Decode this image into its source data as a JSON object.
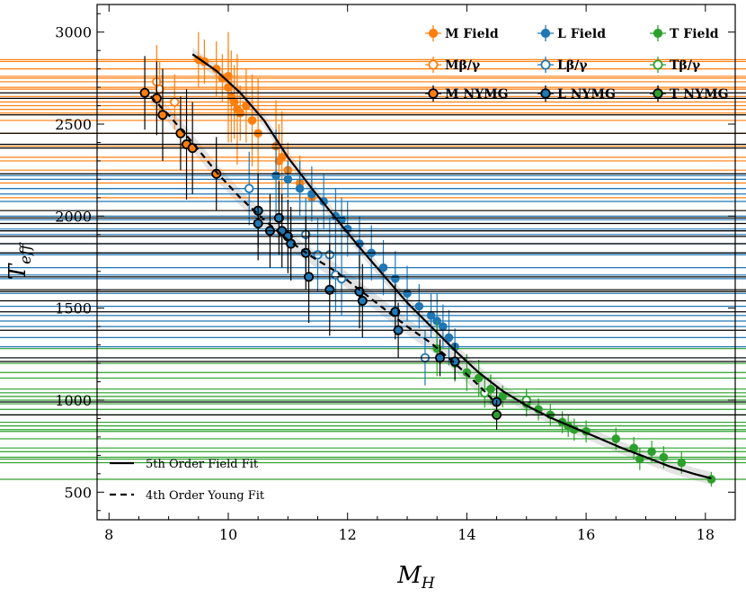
{
  "chart_data": {
    "type": "scatter",
    "title": "",
    "xlabel_main": "M",
    "xlabel_sub": "H",
    "ylabel_main": "T",
    "ylabel_sub": "eff",
    "xlim": [
      7.8,
      18.5
    ],
    "ylim": [
      350,
      3150
    ],
    "xticks": [
      8,
      10,
      12,
      14,
      16,
      18
    ],
    "yticks": [
      500,
      1000,
      1500,
      2000,
      2500,
      3000
    ],
    "grid": false,
    "legend_position": "top-right",
    "fit_legend_position": "bottom-left",
    "colors": {
      "M": "#ff7f0e",
      "L": "#1f77b4",
      "T": "#2ca02c",
      "edge": "#000000",
      "fit": "#000000",
      "band": "#d9d9d9"
    },
    "legend": [
      {
        "label": "M Field",
        "group": "M",
        "style": "filled"
      },
      {
        "label": "L Field",
        "group": "L",
        "style": "filled"
      },
      {
        "label": "T Field",
        "group": "T",
        "style": "filled"
      },
      {
        "label": "Mβ/γ",
        "group": "M",
        "style": "open"
      },
      {
        "label": "Lβ/γ",
        "group": "L",
        "style": "open"
      },
      {
        "label": "Tβ/γ",
        "group": "T",
        "style": "open"
      },
      {
        "label": "M NYMG",
        "group": "M",
        "style": "nymg"
      },
      {
        "label": "L NYMG",
        "group": "L",
        "style": "nymg"
      },
      {
        "label": "T NYMG",
        "group": "T",
        "style": "nymg"
      }
    ],
    "fit_legend": [
      {
        "label": "5th Order Field Fit",
        "dash": "solid"
      },
      {
        "label": "4th Order Young Fit",
        "dash": "dashed"
      }
    ],
    "field_fit": [
      [
        9.4,
        2880
      ],
      [
        9.8,
        2790
      ],
      [
        10.2,
        2670
      ],
      [
        10.6,
        2520
      ],
      [
        11.0,
        2320
      ],
      [
        11.4,
        2150
      ],
      [
        11.8,
        1990
      ],
      [
        12.2,
        1830
      ],
      [
        12.6,
        1680
      ],
      [
        13.0,
        1530
      ],
      [
        13.4,
        1400
      ],
      [
        13.8,
        1270
      ],
      [
        14.2,
        1150
      ],
      [
        14.6,
        1050
      ],
      [
        15.0,
        970
      ],
      [
        15.4,
        905
      ],
      [
        15.8,
        850
      ],
      [
        16.2,
        795
      ],
      [
        16.6,
        740
      ],
      [
        17.0,
        690
      ],
      [
        17.4,
        640
      ],
      [
        17.8,
        600
      ],
      [
        18.1,
        575
      ]
    ],
    "young_fit": [
      [
        8.7,
        2650
      ],
      [
        9.0,
        2550
      ],
      [
        9.4,
        2400
      ],
      [
        9.8,
        2240
      ],
      [
        10.2,
        2100
      ],
      [
        10.6,
        1980
      ],
      [
        11.0,
        1870
      ],
      [
        11.4,
        1780
      ],
      [
        11.8,
        1700
      ],
      [
        12.2,
        1600
      ],
      [
        12.6,
        1500
      ],
      [
        13.0,
        1400
      ],
      [
        13.4,
        1310
      ],
      [
        13.8,
        1200
      ],
      [
        14.2,
        1080
      ],
      [
        14.5,
        980
      ]
    ],
    "series": [
      {
        "name": "M Field",
        "group": "M",
        "style": "filled",
        "points": [
          [
            9.5,
            2850,
            40,
            150
          ],
          [
            9.6,
            2840,
            60,
            120
          ],
          [
            9.8,
            2800,
            70,
            150
          ],
          [
            9.9,
            2750,
            100,
            130
          ],
          [
            10.0,
            2700,
            60,
            300
          ],
          [
            10.0,
            2760,
            80,
            150
          ],
          [
            10.05,
            2650,
            70,
            250
          ],
          [
            10.1,
            2620,
            200,
            200
          ],
          [
            10.15,
            2580,
            70,
            300
          ],
          [
            10.2,
            2560,
            40,
            150
          ],
          [
            10.3,
            2600,
            60,
            200
          ],
          [
            10.4,
            2520,
            50,
            250
          ],
          [
            10.5,
            2450,
            60,
            300
          ],
          [
            10.8,
            2380,
            90,
            250
          ],
          [
            10.85,
            2300,
            40,
            200
          ],
          [
            10.9,
            2320,
            60,
            250
          ],
          [
            11.0,
            2250,
            60,
            150
          ],
          [
            11.2,
            2180,
            50,
            150
          ],
          [
            11.4,
            2100,
            40,
            100
          ]
        ]
      },
      {
        "name": "L Field",
        "group": "L",
        "style": "filled",
        "points": [
          [
            10.8,
            2220,
            50,
            250
          ],
          [
            11.0,
            2200,
            60,
            100
          ],
          [
            11.2,
            2150,
            60,
            150
          ],
          [
            11.4,
            2120,
            70,
            150
          ],
          [
            11.6,
            2080,
            60,
            150
          ],
          [
            11.8,
            2000,
            40,
            150
          ],
          [
            11.9,
            1980,
            60,
            120
          ],
          [
            12.0,
            1930,
            40,
            150
          ],
          [
            12.2,
            1850,
            70,
            150
          ],
          [
            12.4,
            1800,
            60,
            150
          ],
          [
            12.6,
            1720,
            70,
            150
          ],
          [
            12.8,
            1660,
            70,
            150
          ],
          [
            13.0,
            1580,
            60,
            150
          ],
          [
            13.2,
            1510,
            70,
            120
          ],
          [
            13.4,
            1460,
            70,
            120
          ],
          [
            13.5,
            1430,
            70,
            150
          ],
          [
            13.6,
            1400,
            60,
            120
          ],
          [
            13.7,
            1340,
            70,
            150
          ],
          [
            13.8,
            1290,
            60,
            100
          ]
        ]
      },
      {
        "name": "T Field",
        "group": "T",
        "style": "filled",
        "points": [
          [
            13.5,
            1280,
            60,
            150
          ],
          [
            13.8,
            1200,
            60,
            100
          ],
          [
            14.0,
            1150,
            70,
            100
          ],
          [
            14.2,
            1120,
            100,
            100
          ],
          [
            14.4,
            1060,
            100,
            80
          ],
          [
            14.6,
            1020,
            80,
            60
          ],
          [
            15.0,
            980,
            100,
            70
          ],
          [
            15.2,
            950,
            80,
            60
          ],
          [
            15.4,
            920,
            100,
            60
          ],
          [
            15.6,
            880,
            100,
            60
          ],
          [
            15.7,
            860,
            100,
            60
          ],
          [
            15.8,
            840,
            100,
            60
          ],
          [
            16.0,
            830,
            60,
            60
          ],
          [
            16.5,
            790,
            100,
            60
          ],
          [
            16.8,
            740,
            100,
            60
          ],
          [
            16.9,
            680,
            60,
            60
          ],
          [
            17.1,
            720,
            100,
            60
          ],
          [
            17.3,
            690,
            100,
            60
          ],
          [
            17.6,
            660,
            100,
            60
          ],
          [
            18.1,
            570,
            40,
            40
          ]
        ]
      },
      {
        "name": "Mβ/γ",
        "group": "M",
        "style": "open",
        "points": [
          [
            8.8,
            2730,
            30,
            200
          ],
          [
            8.85,
            2690,
            30,
            150
          ],
          [
            9.1,
            2620,
            40,
            150
          ]
        ]
      },
      {
        "name": "Lβ/γ",
        "group": "L",
        "style": "open",
        "points": [
          [
            10.35,
            2150,
            80,
            200
          ],
          [
            11.3,
            1900,
            100,
            200
          ],
          [
            11.5,
            1790,
            100,
            200
          ],
          [
            11.7,
            1790,
            100,
            200
          ],
          [
            11.8,
            1680,
            100,
            200
          ],
          [
            11.9,
            1660,
            100,
            200
          ],
          [
            13.3,
            1230,
            100,
            150
          ]
        ]
      },
      {
        "name": "Tβ/γ",
        "group": "T",
        "style": "open",
        "points": [
          [
            14.3,
            1040,
            80,
            80
          ],
          [
            15.0,
            1000,
            60,
            60
          ]
        ]
      },
      {
        "name": "M NYMG",
        "group": "M",
        "style": "nymg",
        "points": [
          [
            8.6,
            2670,
            150,
            200
          ],
          [
            8.8,
            2640,
            150,
            200
          ],
          [
            8.9,
            2550,
            200,
            250
          ],
          [
            9.2,
            2450,
            400,
            200
          ],
          [
            9.3,
            2390,
            200,
            300
          ],
          [
            9.4,
            2370,
            150,
            250
          ],
          [
            9.8,
            2230,
            250,
            200
          ]
        ]
      },
      {
        "name": "L NYMG",
        "group": "L",
        "style": "nymg",
        "points": [
          [
            10.5,
            2030,
            150,
            200
          ],
          [
            10.5,
            1960,
            300,
            200
          ],
          [
            10.7,
            1920,
            150,
            200
          ],
          [
            10.85,
            1990,
            200,
            200
          ],
          [
            10.9,
            1920,
            300,
            200
          ],
          [
            11.0,
            1890,
            200,
            200
          ],
          [
            11.05,
            1850,
            150,
            200
          ],
          [
            11.3,
            1800,
            200,
            200
          ],
          [
            11.35,
            1670,
            150,
            250
          ],
          [
            11.7,
            1600,
            200,
            250
          ],
          [
            12.2,
            1590,
            150,
            200
          ],
          [
            12.25,
            1540,
            150,
            200
          ],
          [
            12.8,
            1480,
            150,
            150
          ],
          [
            12.85,
            1380,
            150,
            150
          ],
          [
            13.55,
            1230,
            150,
            100
          ],
          [
            13.8,
            1210,
            150,
            100
          ],
          [
            14.5,
            990,
            120,
            80
          ]
        ]
      },
      {
        "name": "T NYMG",
        "group": "T",
        "style": "nymg",
        "points": [
          [
            14.5,
            920,
            100,
            80
          ]
        ]
      }
    ]
  }
}
